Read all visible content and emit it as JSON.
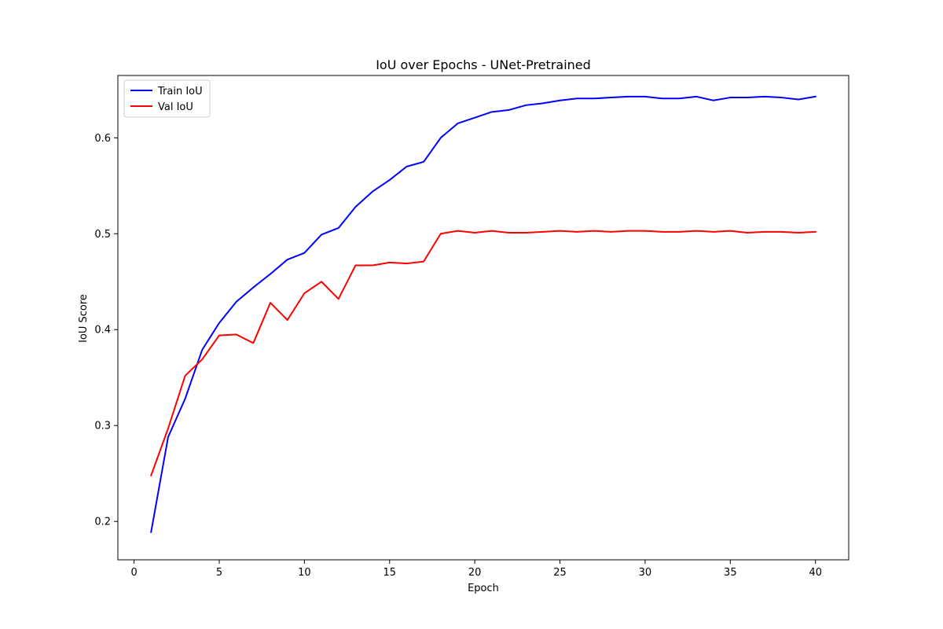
{
  "chart_data": {
    "type": "line",
    "title": "IoU over Epochs - UNet-Pretrained",
    "xlabel": "Epoch",
    "ylabel": "IoU Score",
    "xlim": [
      -0.95,
      41.95
    ],
    "ylim": [
      0.16,
      0.665
    ],
    "xticks": [
      0,
      5,
      10,
      15,
      20,
      25,
      30,
      35,
      40
    ],
    "yticks": [
      0.2,
      0.3,
      0.4,
      0.5,
      0.6
    ],
    "grid": false,
    "legend_position": "top-left",
    "x": [
      1,
      2,
      3,
      4,
      5,
      6,
      7,
      8,
      9,
      10,
      11,
      12,
      13,
      14,
      15,
      16,
      17,
      18,
      19,
      20,
      21,
      22,
      23,
      24,
      25,
      26,
      27,
      28,
      29,
      30,
      31,
      32,
      33,
      34,
      35,
      36,
      37,
      38,
      39,
      40
    ],
    "series": [
      {
        "name": "Train IoU",
        "color": "#0000ff",
        "values": [
          0.189,
          0.288,
          0.328,
          0.379,
          0.407,
          0.429,
          0.444,
          0.458,
          0.473,
          0.48,
          0.499,
          0.506,
          0.528,
          0.544,
          0.556,
          0.57,
          0.575,
          0.6,
          0.615,
          0.621,
          0.627,
          0.629,
          0.634,
          0.636,
          0.639,
          0.641,
          0.641,
          0.642,
          0.643,
          0.643,
          0.641,
          0.641,
          0.643,
          0.639,
          0.642,
          0.642,
          0.643,
          0.642,
          0.64,
          0.643
        ]
      },
      {
        "name": "Val IoU",
        "color": "#ff0000",
        "values": [
          0.248,
          0.297,
          0.352,
          0.369,
          0.394,
          0.395,
          0.386,
          0.428,
          0.41,
          0.438,
          0.45,
          0.432,
          0.467,
          0.467,
          0.47,
          0.469,
          0.471,
          0.5,
          0.503,
          0.501,
          0.503,
          0.501,
          0.501,
          0.502,
          0.503,
          0.502,
          0.503,
          0.502,
          0.503,
          0.503,
          0.502,
          0.502,
          0.503,
          0.502,
          0.503,
          0.501,
          0.502,
          0.502,
          0.501,
          0.502
        ]
      }
    ]
  }
}
